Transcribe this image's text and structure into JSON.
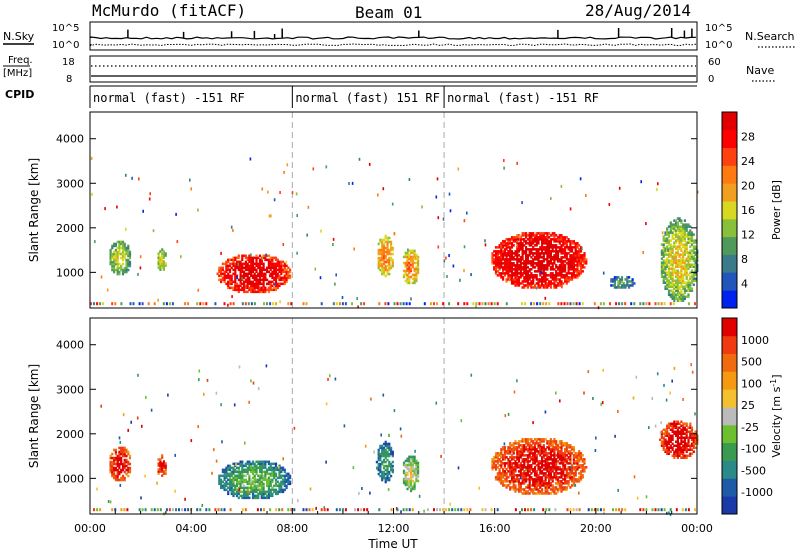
{
  "header": {
    "station": "McMurdo (fitACF)",
    "beam": "Beam 01",
    "date": "28/Aug/2014"
  },
  "status_panels": {
    "nsky_label": "N.Sky",
    "nsky_ticks": [
      "10^5",
      "10^0"
    ],
    "nsearch_label": "N.Search",
    "nsearch_ticks": [
      "10^5",
      "10^0"
    ],
    "freq_label": "Freq.",
    "freq_unit": "[MHz]",
    "freq_ticks": [
      "18",
      "8"
    ],
    "nave_label": "Nave",
    "nave_ticks": [
      "60",
      "0"
    ],
    "cpid_label": "CPID",
    "cpid_segments": [
      {
        "label": "normal (fast) -151 RF",
        "start": 0,
        "end": 8
      },
      {
        "label": "normal (fast) 151 RF",
        "start": 8,
        "end": 14
      },
      {
        "label": "normal (fast) -151 RF",
        "start": 14,
        "end": 24
      }
    ]
  },
  "chart_data": [
    {
      "type": "heatmap",
      "name": "power",
      "ylabel": "Slant Range [km]",
      "ylim": [
        200,
        4600
      ],
      "yticks": [
        1000,
        2000,
        3000,
        4000
      ],
      "xlim": [
        0,
        24
      ],
      "colorbar": {
        "label": "Power [dB]",
        "ticks": [
          "28",
          "24",
          "20",
          "16",
          "12",
          "8",
          "4"
        ],
        "colors": [
          "#0022ee",
          "#2255bb",
          "#3a7a8a",
          "#4f9a5a",
          "#88c03a",
          "#d8d820",
          "#f0a020",
          "#ff7a10",
          "#ff4010",
          "#ff0000",
          "#e00000"
        ]
      },
      "regions": [
        {
          "t0": 0.7,
          "t1": 1.6,
          "r0": 900,
          "r1": 1700,
          "level": 0.25
        },
        {
          "t0": 2.6,
          "t1": 3.0,
          "r0": 1000,
          "r1": 1500,
          "level": 0.3
        },
        {
          "t0": 5.0,
          "t1": 7.9,
          "r0": 500,
          "r1": 1400,
          "level": 0.75
        },
        {
          "t0": 11.3,
          "t1": 12.0,
          "r0": 900,
          "r1": 1800,
          "level": 0.45
        },
        {
          "t0": 12.3,
          "t1": 13.0,
          "r0": 700,
          "r1": 1500,
          "level": 0.45
        },
        {
          "t0": 15.8,
          "t1": 19.6,
          "r0": 600,
          "r1": 1900,
          "level": 0.8
        },
        {
          "t0": 20.5,
          "t1": 21.5,
          "r0": 600,
          "r1": 900,
          "level": 0.1
        },
        {
          "t0": 22.5,
          "t1": 24.0,
          "r0": 300,
          "r1": 2200,
          "level": 0.3
        }
      ]
    },
    {
      "type": "heatmap",
      "name": "velocity",
      "ylabel": "Slant Range [km]",
      "ylim": [
        200,
        4600
      ],
      "yticks": [
        1000,
        2000,
        3000,
        4000
      ],
      "xlim": [
        0,
        24
      ],
      "xticks": [
        "00:00",
        "04:00",
        "08:00",
        "12:00",
        "16:00",
        "20:00",
        "00:00"
      ],
      "xlabel": "Time UT",
      "colorbar": {
        "label": "Velocity [m s",
        "label_sup": "-1",
        "label_end": "]",
        "ticks": [
          "1000",
          "500",
          "100",
          "25",
          "-25",
          "-100",
          "-500",
          "-1000"
        ],
        "colors": [
          "#1a3aa8",
          "#1f5aa8",
          "#2a8a88",
          "#3a9a50",
          "#6cc030",
          "#bbbbbb",
          "#f5c030",
          "#f59a10",
          "#f06a10",
          "#f03a10",
          "#e00000"
        ]
      },
      "regions": [
        {
          "t0": 0.7,
          "t1": 1.6,
          "r0": 900,
          "r1": 1700,
          "level": 0.75
        },
        {
          "t0": 2.6,
          "t1": 3.0,
          "r0": 1000,
          "r1": 1500,
          "level": 0.75
        },
        {
          "t0": 5.0,
          "t1": 7.9,
          "r0": 500,
          "r1": 1400,
          "level": 0.15
        },
        {
          "t0": 11.3,
          "t1": 12.0,
          "r0": 900,
          "r1": 1800,
          "level": 0.1
        },
        {
          "t0": 12.3,
          "t1": 13.0,
          "r0": 700,
          "r1": 1500,
          "level": 0.3
        },
        {
          "t0": 15.8,
          "t1": 19.6,
          "r0": 600,
          "r1": 1900,
          "level": 0.75
        },
        {
          "t0": 22.5,
          "t1": 24.0,
          "r0": 1400,
          "r1": 2300,
          "level": 0.8
        }
      ]
    }
  ]
}
